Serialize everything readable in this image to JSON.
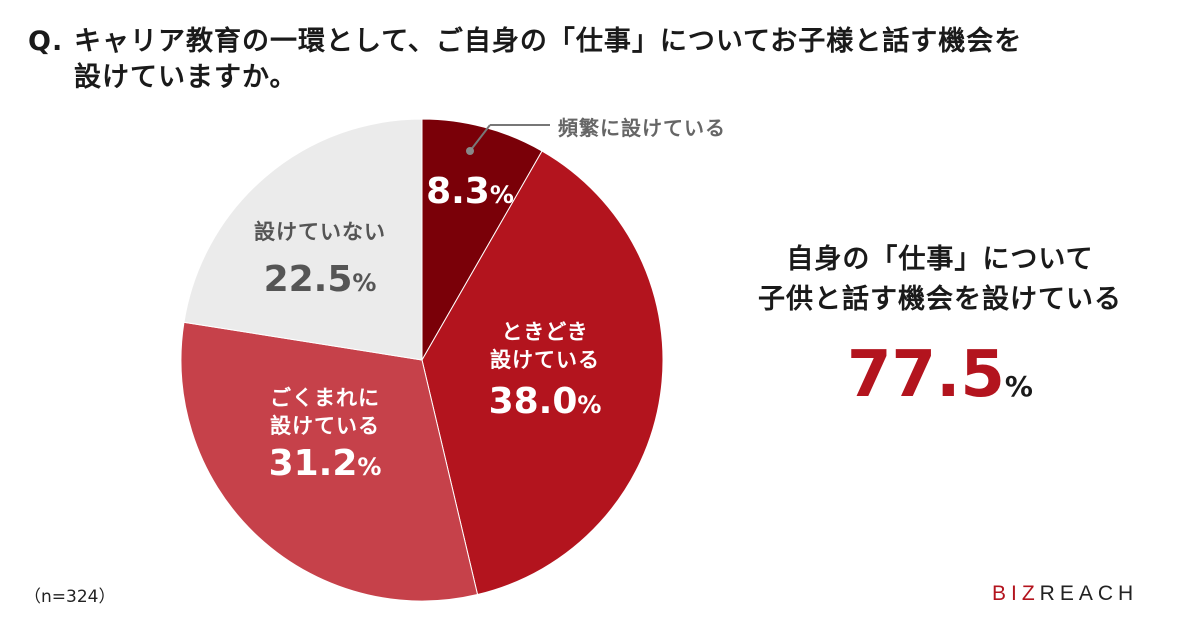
{
  "title": {
    "q": "Q.",
    "line1": "キャリア教育の一環として、ご自身の「仕事」についてお子様と話す機会を",
    "line2": "設けていますか。"
  },
  "slices": [
    {
      "label": "頻繁に設けている",
      "value": "8.3",
      "unit": "%",
      "color": "#7a0008"
    },
    {
      "label1": "ときどき",
      "label2": "設けている",
      "value": "38.0",
      "unit": "%",
      "color": "#b3141e"
    },
    {
      "label1": "ごくまれに",
      "label2": "設けている",
      "value": "31.2",
      "unit": "%",
      "color": "#c6414a"
    },
    {
      "label": "設けていない",
      "value": "22.5",
      "unit": "%",
      "color": "#ebebeb"
    }
  ],
  "summary": {
    "line1": "自身の「仕事」について",
    "line2": "子供と話す機会を設けている",
    "value": "77.5",
    "unit": "%"
  },
  "footer": {
    "n": "（n=324）",
    "logo_biz": "BIZ",
    "logo_reach": "REACH"
  },
  "chart_data": {
    "type": "pie",
    "title": "Q. キャリア教育の一環として、ご自身の「仕事」についてお子様と話す機会を設けていますか。",
    "categories": [
      "頻繁に設けている",
      "ときどき設けている",
      "ごくまれに設けている",
      "設けていない"
    ],
    "values": [
      8.3,
      38.0,
      31.2,
      22.5
    ],
    "colors": [
      "#7a0008",
      "#b3141e",
      "#c6414a",
      "#ebebeb"
    ],
    "annotations": [
      "自身の「仕事」について子供と話す機会を設けている 77.5%"
    ],
    "n": 324
  }
}
